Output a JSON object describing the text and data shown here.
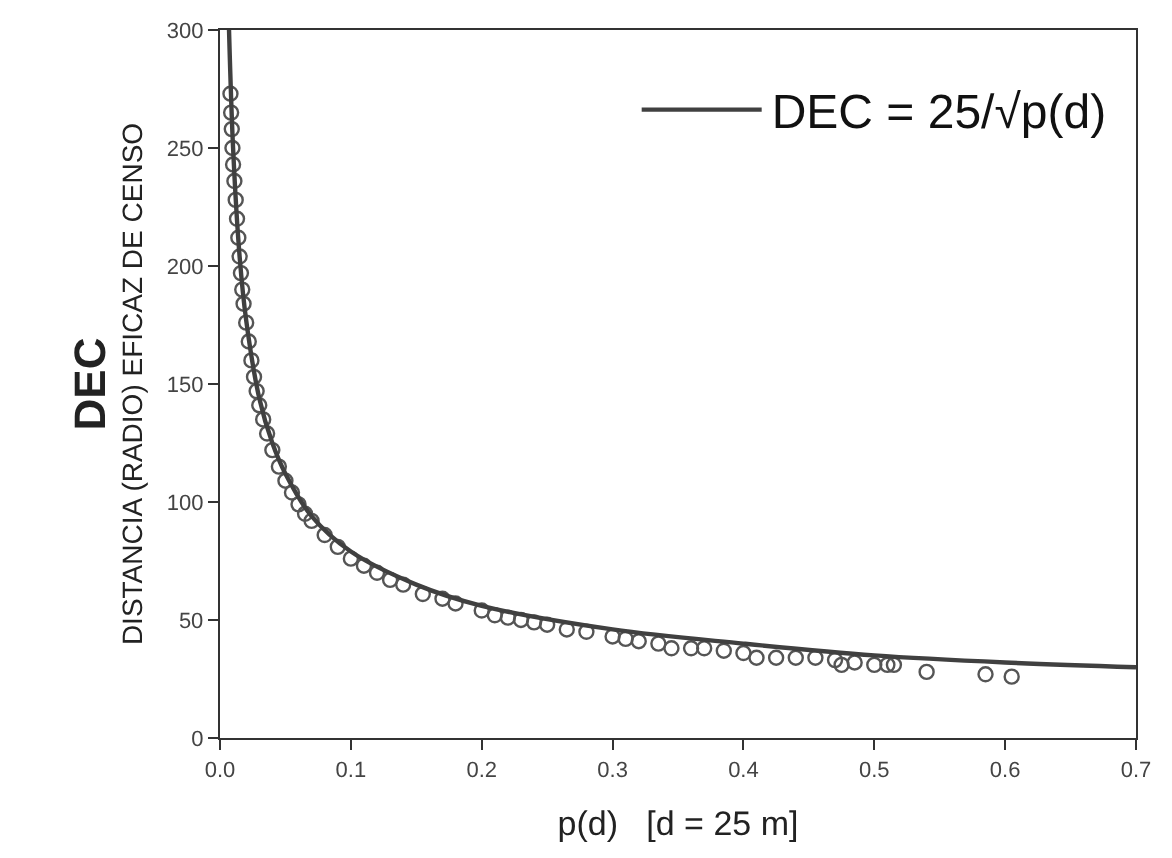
{
  "chart_data": {
    "type": "scatter",
    "xlabel": "p(d)   [d = 25 m]",
    "ylabel": "DEC\nDISTANCIA (RADIO) EFICAZ DE CENSO",
    "xlim": [
      0,
      0.7
    ],
    "ylim": [
      0,
      300
    ],
    "xticks": [
      {
        "value": 0,
        "label": "0.0"
      },
      0.1,
      0.2,
      0.3,
      0.4,
      0.5,
      0.6,
      0.7
    ],
    "yticks": [
      0,
      50,
      100,
      150,
      200,
      250,
      300
    ],
    "legend": "top right",
    "series": [
      {
        "marker": "circle",
        "color": "#555555",
        "x": [
          0.008,
          0.0085,
          0.009,
          0.0095,
          0.01,
          0.011,
          0.012,
          0.013,
          0.014,
          0.015,
          0.016,
          0.017,
          0.018,
          0.02,
          0.022,
          0.024,
          0.026,
          0.028,
          0.03,
          0.033,
          0.036,
          0.04,
          0.045,
          0.05,
          0.055,
          0.06,
          0.065,
          0.07,
          0.08,
          0.09,
          0.1,
          0.11,
          0.12,
          0.13,
          0.14,
          0.155,
          0.17,
          0.18,
          0.2,
          0.21,
          0.22,
          0.23,
          0.24,
          0.25,
          0.265,
          0.28,
          0.3,
          0.31,
          0.32,
          0.335,
          0.345,
          0.36,
          0.37,
          0.385,
          0.4,
          0.41,
          0.425,
          0.44,
          0.455,
          0.47,
          0.475,
          0.485,
          0.5,
          0.51,
          0.515,
          0.54,
          0.585,
          0.605
        ],
        "values": [
          273,
          265,
          258,
          250,
          243,
          236,
          228,
          220,
          212,
          204,
          197,
          190,
          184,
          176,
          168,
          160,
          153,
          147,
          141,
          135,
          129,
          122,
          115,
          109,
          104,
          99,
          95,
          92,
          86,
          81,
          76,
          73,
          70,
          67,
          65,
          61,
          59,
          57,
          54,
          52,
          51,
          50,
          49,
          48,
          46,
          45,
          43,
          42,
          41,
          40,
          38,
          38,
          38,
          37,
          36,
          34,
          34,
          34,
          34,
          33,
          31,
          32,
          31,
          31,
          31,
          28,
          27,
          26
        ]
      },
      {
        "type": "line",
        "name": "DEC = 25/√p(d)",
        "color": "#404040",
        "line_style": "solid",
        "marker": "none",
        "x": [
          0.0069,
          0.01,
          0.015,
          0.02,
          0.03,
          0.04,
          0.05,
          0.07,
          0.1,
          0.15,
          0.2,
          0.3,
          0.4,
          0.5,
          0.6,
          0.7
        ],
        "values": [
          300,
          250,
          204,
          177,
          144,
          125,
          112,
          94,
          79,
          65,
          56,
          46,
          40,
          35,
          32,
          30
        ]
      }
    ]
  }
}
